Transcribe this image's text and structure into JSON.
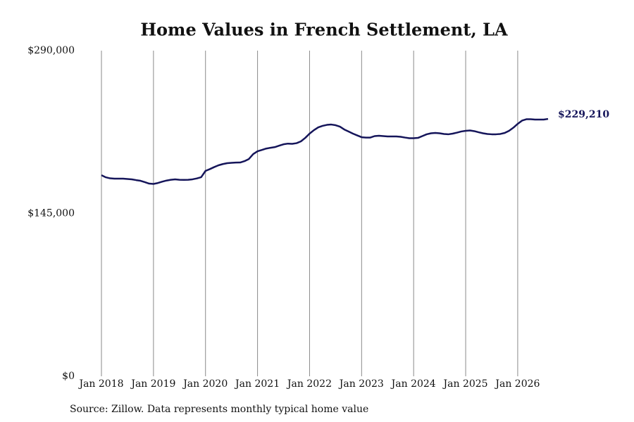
{
  "chart_data": {
    "type": "line",
    "title": "Home Values in French Settlement, LA",
    "source": "Source: Zillow. Data represents monthly typical home value",
    "x": [
      "2018-01",
      "2018-02",
      "2018-03",
      "2018-04",
      "2018-05",
      "2018-06",
      "2018-07",
      "2018-08",
      "2018-09",
      "2018-10",
      "2018-11",
      "2018-12",
      "2019-01",
      "2019-02",
      "2019-03",
      "2019-04",
      "2019-05",
      "2019-06",
      "2019-07",
      "2019-08",
      "2019-09",
      "2019-10",
      "2019-11",
      "2019-12",
      "2020-01",
      "2020-02",
      "2020-03",
      "2020-04",
      "2020-05",
      "2020-06",
      "2020-07",
      "2020-08",
      "2020-09",
      "2020-10",
      "2020-11",
      "2020-12",
      "2021-01",
      "2021-02",
      "2021-03",
      "2021-04",
      "2021-05",
      "2021-06",
      "2021-07",
      "2021-08",
      "2021-09",
      "2021-10",
      "2021-11",
      "2021-12",
      "2022-01",
      "2022-02",
      "2022-03",
      "2022-04",
      "2022-05",
      "2022-06",
      "2022-07",
      "2022-08",
      "2022-09",
      "2022-10",
      "2022-11",
      "2022-12",
      "2023-01",
      "2023-02",
      "2023-03",
      "2023-04",
      "2023-05",
      "2023-06",
      "2023-07",
      "2023-08",
      "2023-09",
      "2023-10",
      "2023-11",
      "2023-12",
      "2024-01",
      "2024-02",
      "2024-03",
      "2024-04",
      "2024-05",
      "2024-06",
      "2024-07",
      "2024-08",
      "2024-09",
      "2024-10",
      "2024-11",
      "2024-12",
      "2025-01",
      "2025-02",
      "2025-03",
      "2025-04",
      "2025-05",
      "2025-06",
      "2025-07",
      "2025-08",
      "2025-09",
      "2025-10",
      "2025-11",
      "2025-12",
      "2026-01",
      "2026-02",
      "2026-03",
      "2026-04",
      "2026-05",
      "2026-06",
      "2026-07",
      "2026-08"
    ],
    "series": [
      {
        "name": "Home value",
        "color": "#15155a",
        "values": [
          179100,
          177200,
          176300,
          176000,
          176000,
          176000,
          175700,
          175400,
          174700,
          174100,
          172900,
          171600,
          171300,
          172100,
          173300,
          174300,
          175000,
          175400,
          175000,
          174900,
          175000,
          175400,
          176200,
          177300,
          182900,
          184500,
          186300,
          187900,
          189000,
          189800,
          190100,
          190300,
          190400,
          191600,
          193500,
          197900,
          200400,
          201600,
          202800,
          203500,
          204100,
          205400,
          206600,
          207200,
          207000,
          207600,
          209200,
          212300,
          216100,
          219200,
          221700,
          223000,
          223900,
          224200,
          223600,
          222300,
          219800,
          218000,
          216100,
          214500,
          212900,
          212600,
          212600,
          213900,
          214200,
          213900,
          213600,
          213600,
          213600,
          213300,
          212600,
          212000,
          212000,
          212300,
          213900,
          215500,
          216400,
          216700,
          216400,
          215800,
          215500,
          216100,
          217000,
          218000,
          218600,
          218900,
          218300,
          217300,
          216400,
          215800,
          215500,
          215500,
          215800,
          216700,
          218600,
          221400,
          224800,
          227700,
          228900,
          228900,
          228600,
          228600,
          228600,
          229210
        ],
        "value_labels": [
          null,
          null,
          null,
          null,
          null,
          null,
          null,
          null,
          null,
          null,
          null,
          null,
          null,
          null,
          null,
          null,
          null,
          null,
          null,
          null,
          null,
          null,
          null,
          null,
          null,
          null,
          null,
          null,
          null,
          null,
          null,
          null,
          null,
          null,
          null,
          null,
          null,
          null,
          null,
          null,
          null,
          null,
          null,
          null,
          null,
          null,
          null,
          null,
          null,
          null,
          null,
          null,
          null,
          null,
          null,
          null,
          null,
          null,
          null,
          null,
          null,
          null,
          null,
          null,
          null,
          null,
          null,
          null,
          null,
          null,
          null,
          null,
          null,
          null,
          null,
          null,
          null,
          null,
          null,
          null,
          null,
          null,
          null,
          null,
          null,
          null,
          null,
          null,
          null,
          null,
          null,
          null,
          null,
          null,
          null,
          null,
          null,
          null,
          null,
          null,
          null,
          null,
          null,
          "$229,210"
        ]
      }
    ],
    "xlim": [
      "2018-01",
      "2026-08"
    ],
    "xticks": [
      {
        "value": "2018-01",
        "label": "Jan 2018"
      },
      {
        "value": "2019-01",
        "label": "Jan 2019"
      },
      {
        "value": "2020-01",
        "label": "Jan 2020"
      },
      {
        "value": "2021-01",
        "label": "Jan 2021"
      },
      {
        "value": "2022-01",
        "label": "Jan 2022"
      },
      {
        "value": "2023-01",
        "label": "Jan 2023"
      },
      {
        "value": "2024-01",
        "label": "Jan 2024"
      },
      {
        "value": "2025-01",
        "label": "Jan 2025"
      },
      {
        "value": "2026-01",
        "label": "Jan 2026"
      }
    ],
    "ylim": [
      0,
      290000
    ],
    "yticks": [
      {
        "value": 0,
        "label": "$0"
      },
      {
        "value": 145000,
        "label": "$145,000"
      },
      {
        "value": 290000,
        "label": "$290,000"
      }
    ],
    "grid": "x"
  }
}
